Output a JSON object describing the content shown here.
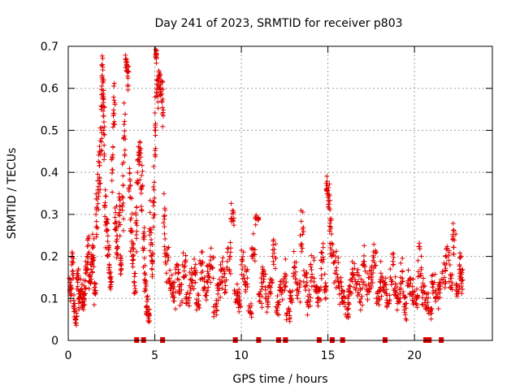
{
  "chart_data": {
    "type": "scatter",
    "title": "Day 241 of 2023, SRMTID for receiver p803",
    "xlabel": "GPS time / hours",
    "ylabel": "SRMTID / TECUs",
    "xlim": [
      0,
      24.5
    ],
    "ylim": [
      0,
      0.7
    ],
    "x_ticks": [
      0,
      5,
      10,
      15,
      20
    ],
    "x_tick_labels": [
      "0",
      "5",
      "10",
      "15",
      "20"
    ],
    "y_ticks": [
      0,
      0.1,
      0.2,
      0.3,
      0.4,
      0.5,
      0.6,
      0.7
    ],
    "y_tick_labels": [
      "0",
      "0.1",
      "0.2",
      "0.3",
      "0.4",
      "0.5",
      "0.6",
      "0.7"
    ],
    "grid": true,
    "marker": "+",
    "color": "#e00000",
    "series": [
      {
        "name": "SRMTID",
        "x": [
          0.0,
          0.1,
          0.2,
          0.3,
          0.4,
          0.5,
          0.6,
          0.7,
          0.8,
          0.9,
          1.0,
          1.1,
          1.2,
          1.3,
          1.4,
          1.5,
          1.6,
          1.7,
          1.8,
          1.9,
          1.95,
          2.0,
          2.05,
          2.1,
          2.2,
          2.3,
          2.4,
          2.5,
          2.6,
          2.7,
          2.8,
          2.9,
          3.0,
          3.1,
          3.2,
          3.3,
          3.4,
          3.5,
          3.6,
          3.7,
          3.8,
          3.9,
          4.0,
          4.1,
          4.2,
          4.3,
          4.4,
          4.5,
          4.6,
          4.7,
          4.8,
          4.9,
          5.0,
          5.05,
          5.1,
          5.2,
          5.3,
          5.4,
          5.5,
          5.6,
          5.8,
          6.0,
          6.2,
          6.4,
          6.6,
          6.8,
          7.0,
          7.2,
          7.4,
          7.6,
          7.8,
          8.0,
          8.2,
          8.4,
          8.6,
          8.8,
          9.0,
          9.2,
          9.4,
          9.6,
          9.8,
          10.0,
          10.2,
          10.4,
          10.6,
          10.8,
          11.0,
          11.2,
          11.4,
          11.6,
          11.8,
          12.0,
          12.2,
          12.4,
          12.6,
          12.8,
          13.0,
          13.2,
          13.4,
          13.6,
          13.8,
          14.0,
          14.2,
          14.4,
          14.6,
          14.8,
          14.9,
          15.0,
          15.1,
          15.2,
          15.4,
          15.6,
          15.8,
          16.0,
          16.2,
          16.4,
          16.6,
          16.8,
          17.0,
          17.2,
          17.4,
          17.6,
          17.8,
          18.0,
          18.2,
          18.4,
          18.6,
          18.8,
          19.0,
          19.2,
          19.4,
          19.6,
          19.8,
          20.0,
          20.2,
          20.4,
          20.6,
          20.8,
          21.0,
          21.2,
          21.4,
          21.6,
          21.8,
          22.0,
          22.2,
          22.4,
          22.6,
          22.7
        ],
        "y": [
          0.14,
          0.12,
          0.18,
          0.08,
          0.05,
          0.15,
          0.1,
          0.12,
          0.09,
          0.11,
          0.16,
          0.2,
          0.14,
          0.18,
          0.22,
          0.12,
          0.3,
          0.38,
          0.45,
          0.55,
          0.63,
          0.58,
          0.5,
          0.32,
          0.26,
          0.2,
          0.15,
          0.43,
          0.54,
          0.28,
          0.22,
          0.3,
          0.18,
          0.34,
          0.48,
          0.67,
          0.64,
          0.36,
          0.26,
          0.2,
          0.14,
          0.28,
          0.4,
          0.44,
          0.36,
          0.22,
          0.16,
          0.08,
          0.06,
          0.26,
          0.2,
          0.33,
          0.5,
          0.68,
          0.59,
          0.63,
          0.6,
          0.57,
          0.28,
          0.2,
          0.14,
          0.11,
          0.16,
          0.12,
          0.18,
          0.1,
          0.13,
          0.16,
          0.09,
          0.19,
          0.12,
          0.14,
          0.17,
          0.08,
          0.13,
          0.18,
          0.15,
          0.21,
          0.29,
          0.12,
          0.1,
          0.18,
          0.14,
          0.07,
          0.22,
          0.29,
          0.11,
          0.16,
          0.1,
          0.13,
          0.2,
          0.08,
          0.12,
          0.14,
          0.06,
          0.1,
          0.16,
          0.12,
          0.25,
          0.14,
          0.09,
          0.18,
          0.13,
          0.1,
          0.19,
          0.12,
          0.36,
          0.34,
          0.26,
          0.2,
          0.16,
          0.14,
          0.1,
          0.08,
          0.12,
          0.16,
          0.14,
          0.11,
          0.18,
          0.13,
          0.15,
          0.19,
          0.1,
          0.14,
          0.12,
          0.09,
          0.17,
          0.12,
          0.1,
          0.15,
          0.08,
          0.13,
          0.11,
          0.1,
          0.19,
          0.12,
          0.09,
          0.07,
          0.14,
          0.1,
          0.12,
          0.16,
          0.2,
          0.14,
          0.24,
          0.12,
          0.18,
          0.15
        ],
        "spread": [
          0.05,
          0.04,
          0.06,
          0.04,
          0.03,
          0.05,
          0.04,
          0.04,
          0.04,
          0.04,
          0.05,
          0.06,
          0.05,
          0.07,
          0.09,
          0.05,
          0.1,
          0.12,
          0.15,
          0.18,
          0.1,
          0.12,
          0.15,
          0.12,
          0.1,
          0.08,
          0.05,
          0.15,
          0.12,
          0.1,
          0.08,
          0.1,
          0.07,
          0.12,
          0.16,
          0.05,
          0.08,
          0.12,
          0.1,
          0.08,
          0.06,
          0.1,
          0.12,
          0.08,
          0.1,
          0.08,
          0.06,
          0.04,
          0.03,
          0.1,
          0.08,
          0.12,
          0.15,
          0.03,
          0.08,
          0.05,
          0.05,
          0.1,
          0.12,
          0.08,
          0.06,
          0.05,
          0.06,
          0.05,
          0.07,
          0.04,
          0.05,
          0.06,
          0.04,
          0.07,
          0.05,
          0.06,
          0.07,
          0.04,
          0.05,
          0.07,
          0.06,
          0.08,
          0.04,
          0.05,
          0.04,
          0.07,
          0.06,
          0.03,
          0.08,
          0.03,
          0.05,
          0.06,
          0.04,
          0.05,
          0.08,
          0.04,
          0.05,
          0.06,
          0.03,
          0.04,
          0.06,
          0.05,
          0.09,
          0.05,
          0.04,
          0.07,
          0.05,
          0.04,
          0.07,
          0.05,
          0.04,
          0.05,
          0.09,
          0.08,
          0.07,
          0.06,
          0.04,
          0.04,
          0.05,
          0.07,
          0.06,
          0.05,
          0.07,
          0.05,
          0.06,
          0.07,
          0.04,
          0.06,
          0.05,
          0.04,
          0.07,
          0.05,
          0.04,
          0.06,
          0.04,
          0.05,
          0.05,
          0.04,
          0.07,
          0.05,
          0.04,
          0.03,
          0.05,
          0.04,
          0.05,
          0.06,
          0.07,
          0.06,
          0.08,
          0.05,
          0.07,
          0.06
        ]
      }
    ],
    "gap_markers_x": [
      3.95,
      4.35,
      5.45,
      9.65,
      11.0,
      12.15,
      12.55,
      14.5,
      15.25,
      15.85,
      18.3,
      20.65,
      20.85,
      21.55
    ]
  }
}
